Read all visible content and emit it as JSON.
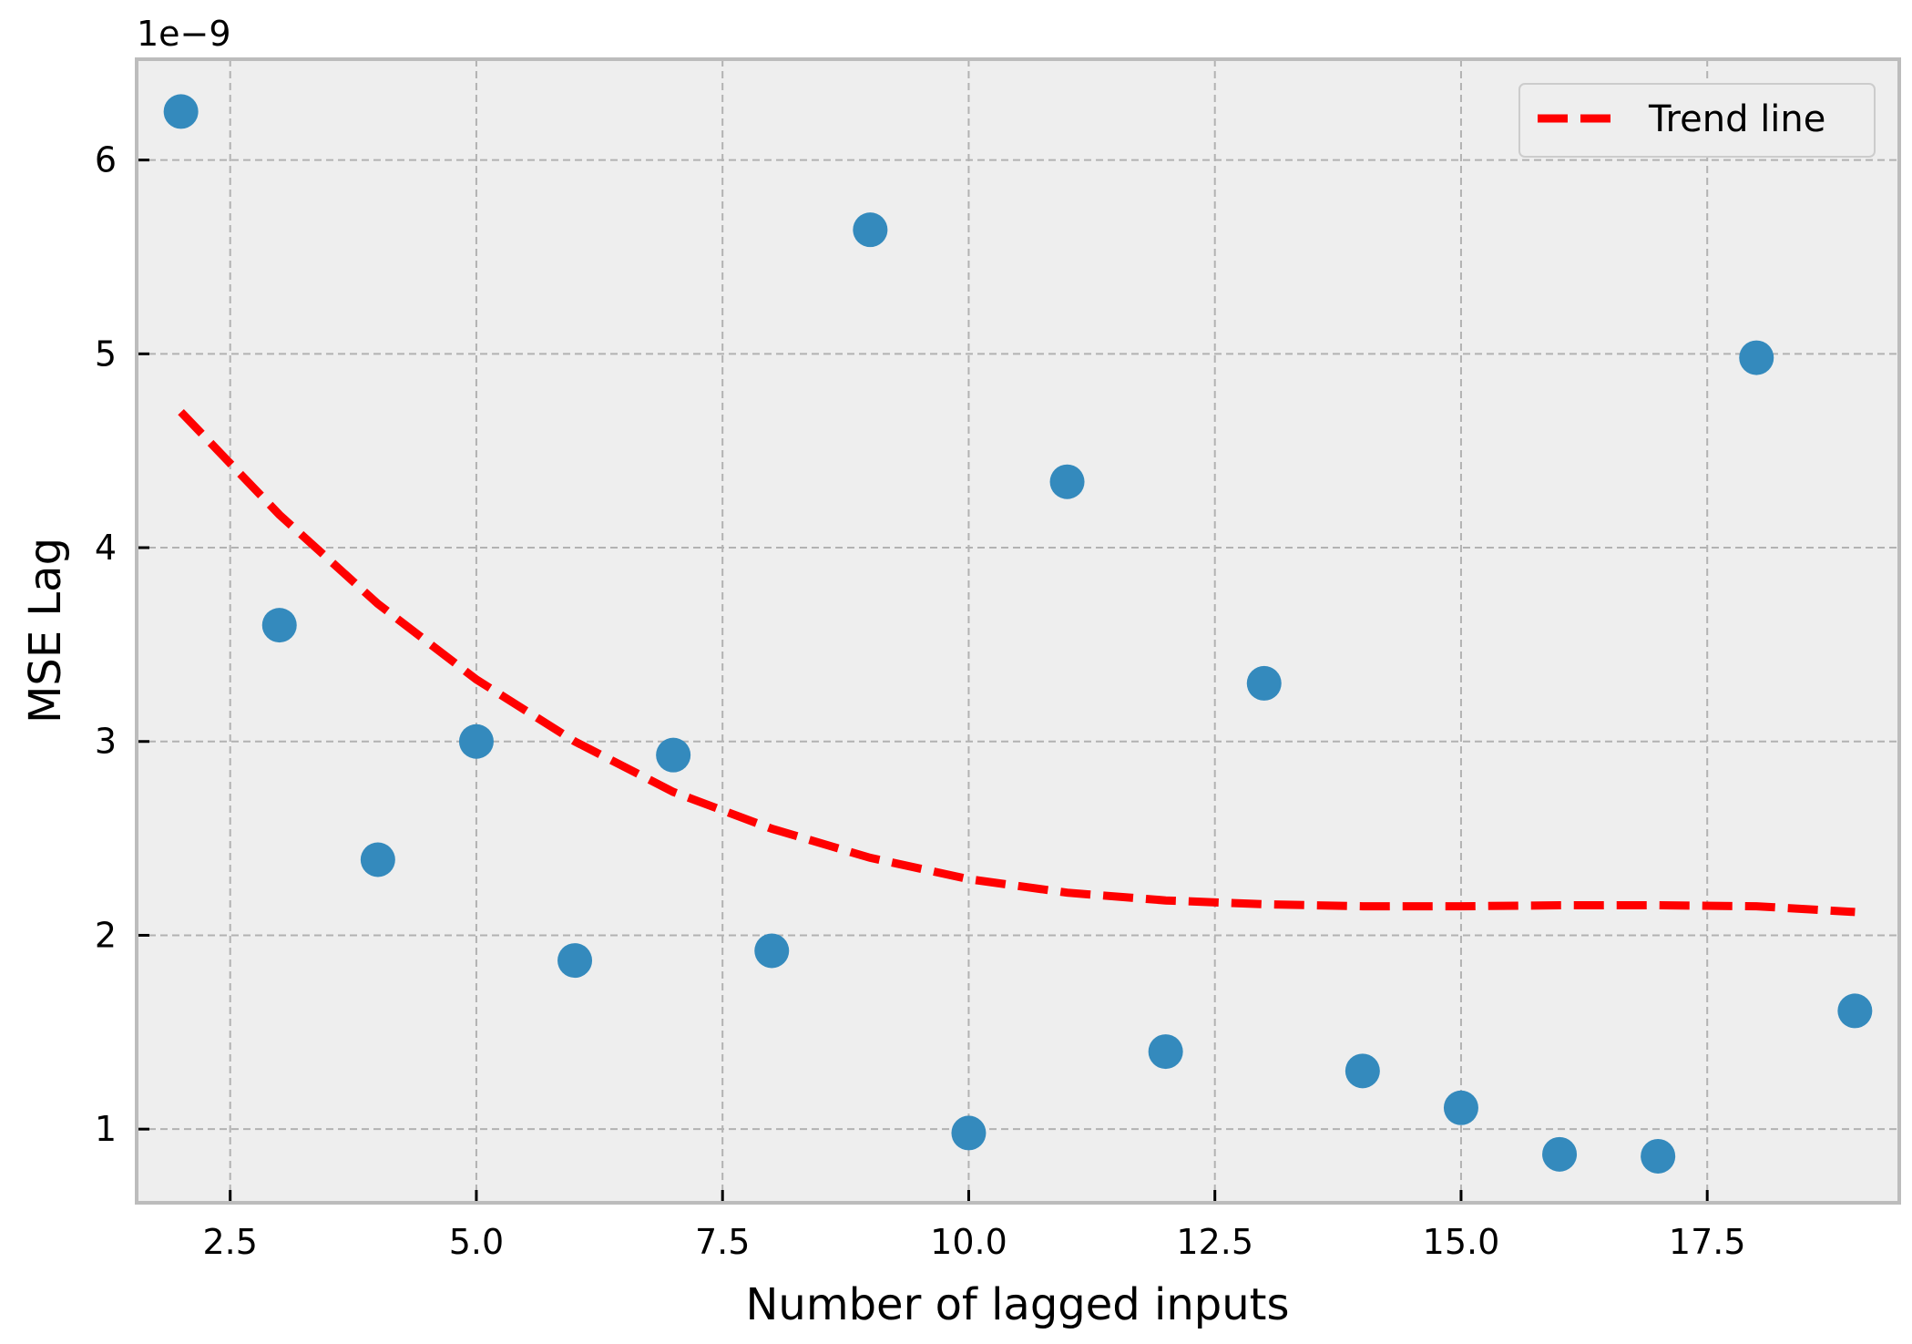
{
  "chart_data": {
    "type": "scatter",
    "title": "",
    "xlabel": "Number of lagged inputs",
    "ylabel": "MSE Lag",
    "y_offset_label": "1e−9",
    "xlim": [
      1.55,
      19.45
    ],
    "ylim": [
      0.62,
      6.52
    ],
    "xticks": [
      2.5,
      5.0,
      7.5,
      10.0,
      12.5,
      15.0,
      17.5
    ],
    "xtick_labels": [
      "2.5",
      "5.0",
      "7.5",
      "10.0",
      "12.5",
      "15.0",
      "17.5"
    ],
    "yticks": [
      1,
      2,
      3,
      4,
      5,
      6
    ],
    "ytick_labels": [
      "1",
      "2",
      "3",
      "4",
      "5",
      "6"
    ],
    "grid": true,
    "legend_position": "top-right",
    "series": [
      {
        "name": "MSE",
        "kind": "scatter",
        "color": "#348ABD",
        "x": [
          2,
          3,
          4,
          5,
          6,
          7,
          8,
          9,
          10,
          11,
          12,
          13,
          14,
          15,
          16,
          17,
          18,
          19
        ],
        "y": [
          6.25,
          3.6,
          2.39,
          3.0,
          1.87,
          2.93,
          1.92,
          5.64,
          0.98,
          4.34,
          1.4,
          3.3,
          1.3,
          1.11,
          0.87,
          0.86,
          4.98,
          1.61
        ]
      },
      {
        "name": "Trend line",
        "kind": "line",
        "style": "dashed",
        "color": "#FF0000",
        "x": [
          2,
          3,
          4,
          5,
          6,
          7,
          8,
          9,
          10,
          11,
          12,
          13,
          14,
          15,
          16,
          17,
          18,
          19
        ],
        "y": [
          4.7,
          4.17,
          3.71,
          3.32,
          3.0,
          2.74,
          2.55,
          2.4,
          2.29,
          2.22,
          2.18,
          2.16,
          2.15,
          2.15,
          2.155,
          2.155,
          2.15,
          2.12
        ]
      }
    ],
    "legend": [
      {
        "label": "Trend line",
        "color": "#FF0000",
        "style": "dashed"
      }
    ]
  },
  "colors": {
    "plot_background": "#EEEEEE",
    "frame": "#BCBCBC",
    "grid": "#B2B2B2",
    "marker": "#348ABD",
    "trend": "#FF0000"
  }
}
